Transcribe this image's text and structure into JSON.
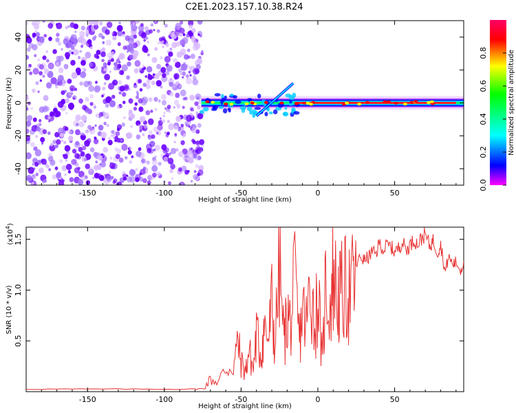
{
  "title": "C2E1.2023.157.10.38.R24",
  "colors": {
    "snr_line": "#e83030",
    "noise_purple": "#6a00ff",
    "colorbar": [
      "#ff00ff",
      "#0000ff",
      "#00ffff",
      "#00ff00",
      "#ffff00",
      "#ff0000",
      "#ff0066"
    ]
  },
  "chart_data": [
    {
      "type": "heatmap",
      "name": "spectrogram",
      "xlabel": "Height of straight line (km)",
      "ylabel": "Frequency (Hz)",
      "xlim": [
        -190,
        95
      ],
      "ylim": [
        -50,
        50
      ],
      "x_ticks": [
        -150,
        -100,
        -50,
        0,
        50
      ],
      "x_tick_labels": [
        "-150",
        "-100",
        "-50",
        "0",
        "50"
      ],
      "y_ticks": [
        -40,
        -20,
        0,
        20,
        40
      ],
      "y_tick_labels": [
        "-40",
        "-20",
        "0",
        "20",
        "40"
      ],
      "noise_region_x": [
        -190,
        -75
      ],
      "signal_band_center_hz": 0,
      "colorbar": {
        "label": "Normalized spectral amplitude",
        "range": [
          0,
          1
        ],
        "ticks": [
          0.0,
          0.2,
          0.4,
          0.6,
          0.8
        ],
        "tick_labels": [
          "0.0",
          "0.2",
          "0.4",
          "0.6",
          "0.8"
        ]
      }
    },
    {
      "type": "line",
      "name": "snr",
      "xlabel": "Height of straight line (km)",
      "ylabel": "SNR (10 * v/v)",
      "y_scale_note": "(x10",
      "y_scale_exp": "4",
      "y_scale_close": ")",
      "xlim": [
        -190,
        95
      ],
      "ylim": [
        0,
        16200
      ],
      "x_ticks": [
        -150,
        -100,
        -50,
        0,
        50
      ],
      "x_tick_labels": [
        "-150",
        "-100",
        "-50",
        "0",
        "50"
      ],
      "y_ticks": [
        5000,
        10000,
        15000
      ],
      "y_tick_labels": [
        "0.5",
        "1.0",
        "1.5"
      ],
      "x": [
        -190,
        -160,
        -130,
        -100,
        -80,
        -75,
        -70,
        -65,
        -60,
        -55,
        -52,
        -50,
        -47,
        -45,
        -42,
        -40,
        -37,
        -35,
        -32,
        -30,
        -28,
        -25,
        -22,
        -20,
        -18,
        -15,
        -12,
        -10,
        -7,
        -5,
        -2,
        0,
        3,
        5,
        8,
        10,
        13,
        15,
        18,
        20,
        23,
        25,
        28,
        30,
        33,
        35,
        38,
        40,
        43,
        45,
        48,
        50,
        53,
        55,
        58,
        60,
        63,
        65,
        68,
        70,
        73,
        75,
        78,
        80,
        83,
        85,
        88,
        90,
        93,
        95
      ],
      "y": [
        250,
        250,
        250,
        250,
        250,
        300,
        1500,
        1200,
        2800,
        3200,
        6000,
        3500,
        2500,
        5000,
        2800,
        7000,
        4500,
        8000,
        6500,
        11000,
        5500,
        15300,
        6000,
        9500,
        8500,
        13000,
        6200,
        10000,
        8000,
        15000,
        7500,
        12500,
        3200,
        13500,
        10500,
        14500,
        11500,
        11800,
        12500,
        12000,
        13000,
        12800,
        13500,
        13200,
        13500,
        14000,
        13800,
        15000,
        14200,
        14800,
        14500,
        14000,
        14500,
        15000,
        14200,
        14800,
        15200,
        14800,
        15500,
        15800,
        14600,
        15200,
        14000,
        14800,
        12000,
        13500,
        12800,
        13000,
        12200,
        12900
      ]
    }
  ]
}
